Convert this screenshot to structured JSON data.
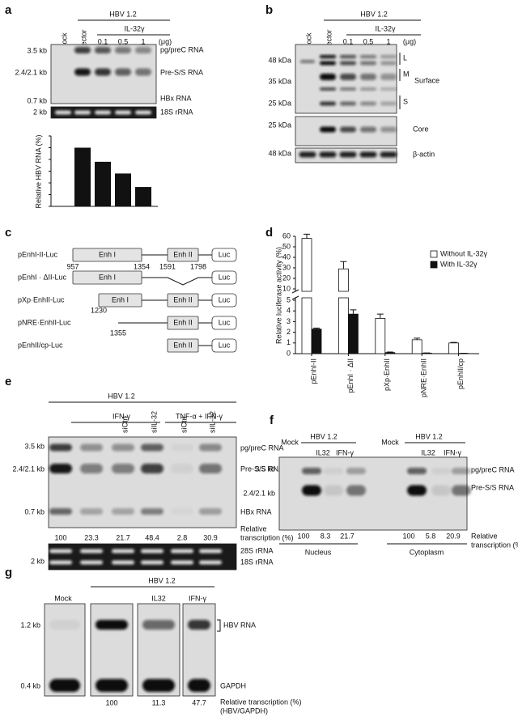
{
  "panels": {
    "a": {
      "letter": "a",
      "group": "HBV 1.2",
      "treatment": "IL-32γ",
      "lanes": [
        "Mock",
        "Vector",
        "0.1",
        "0.5",
        "1"
      ],
      "unit": "(μg)",
      "markers": [
        "3.5 kb",
        "2.4/2.1 kb",
        "0.7 kb",
        "2 kb"
      ],
      "bands": [
        "pg/preC RNA",
        "Pre-S/S RNA",
        "HBx RNA",
        "18S rRNA"
      ]
    },
    "b": {
      "letter": "b",
      "group": "HBV 1.2",
      "treatment": "IL-32γ",
      "lanes": [
        "Mock",
        "Vector",
        "0.1",
        "0.5",
        "1"
      ],
      "unit": "(μg)",
      "markers": [
        "48 kDa",
        "35 kDa",
        "25 kDa",
        "25 kDa",
        "48 kDa"
      ],
      "bands": [
        "L",
        "M",
        "S",
        "Surface",
        "Core",
        "β-actin"
      ]
    },
    "c": {
      "letter": "c",
      "constructs": [
        "pEnhI-II-Luc",
        "pEnhI · ΔII-Luc",
        "pXp·EnhII-Luc",
        "pNRE·EnhII-Luc",
        "pEnhII/cp-Luc"
      ],
      "elements": [
        "Enh I",
        "Enh II",
        "Luc"
      ],
      "positions": [
        "957",
        "1354",
        "1591",
        "1798",
        "1230",
        "1355"
      ]
    },
    "d": {
      "letter": "d"
    },
    "e": {
      "letter": "e",
      "group": "HBV 1.2",
      "treatments": [
        "IFN-γ",
        "TNF-α + IFN-γ"
      ],
      "sirna": [
        "siCtrl",
        "siIL-32",
        "siCtrl",
        "siIL-32"
      ],
      "markers": [
        "3.5 kb",
        "2.4/2.1 kb",
        "0.7 kb",
        "2 kb"
      ],
      "bands": [
        "pg/preC RNA",
        "Pre-S/S RNA",
        "HBx RNA",
        "28S rRNA",
        "18S rRNA"
      ],
      "quant_label": [
        "Relative",
        "transcription (%)"
      ],
      "quant": [
        "100",
        "23.3",
        "21.7",
        "48.4",
        "2.8",
        "30.9"
      ]
    },
    "f": {
      "letter": "f",
      "lanes": [
        "Mock",
        "IL32",
        "IFN-γ",
        "Mock",
        "IL32",
        "IFN-γ"
      ],
      "group": "HBV 1.2",
      "markers": [
        "3.5 kb",
        "2.4/2.1 kb"
      ],
      "bands": [
        "pg/preC RNA",
        "Pre-S/S RNA"
      ],
      "quant": [
        "100",
        "8.3",
        "21.7",
        "100",
        "5.8",
        "20.9"
      ],
      "quant_label": [
        "Relative",
        "transcription (%)"
      ],
      "fractions": [
        "Nucleus",
        "Cytoplasm"
      ]
    },
    "g": {
      "letter": "g",
      "lanes": [
        "Mock",
        "IL32",
        "IFN-γ"
      ],
      "group": "HBV 1.2",
      "markers": [
        "1.2 kb",
        "0.4 kb"
      ],
      "bands": [
        "HBV RNA",
        "GAPDH"
      ],
      "quant": [
        "100",
        "11.3",
        "47.7"
      ],
      "quant_label": [
        "Relative transcription (%)",
        "(HBV/GAPDH)"
      ]
    }
  },
  "chart_data": [
    {
      "type": "bar",
      "y_label": "Relative HBV RNA (%)",
      "values": [
        0,
        100,
        76,
        56,
        33
      ],
      "color": "#111111",
      "ylim": [
        0,
        120
      ],
      "yticks": [
        0,
        20,
        40,
        60,
        80,
        100,
        120
      ]
    },
    {
      "type": "grouped-bar",
      "y_label": "Relative luciferase activity (%)",
      "categories": [
        "pEnhI-II",
        "pEnhI · ΔII",
        "pXp·EnhII",
        "pNRE·EnhII",
        "pEnhII/cp"
      ],
      "series": [
        {
          "name": "Without IL-32γ",
          "color": "#ffffff",
          "values": [
            58,
            29,
            3.3,
            1.3,
            1.0
          ],
          "errors": [
            4,
            7,
            0.4,
            0.15,
            0.05
          ]
        },
        {
          "name": "With IL-32γ",
          "color": "#111111",
          "values": [
            2.3,
            3.7,
            0.1,
            0.05,
            0.03
          ],
          "errors": [
            0.1,
            0.4,
            0.05,
            0.02,
            0.01
          ]
        }
      ],
      "ylim": [
        0,
        60
      ],
      "ybreak": [
        5,
        10
      ],
      "yticks": [
        0,
        1,
        2,
        3,
        4,
        5,
        10,
        20,
        30,
        40,
        50,
        60
      ],
      "legend": "top-right"
    }
  ]
}
